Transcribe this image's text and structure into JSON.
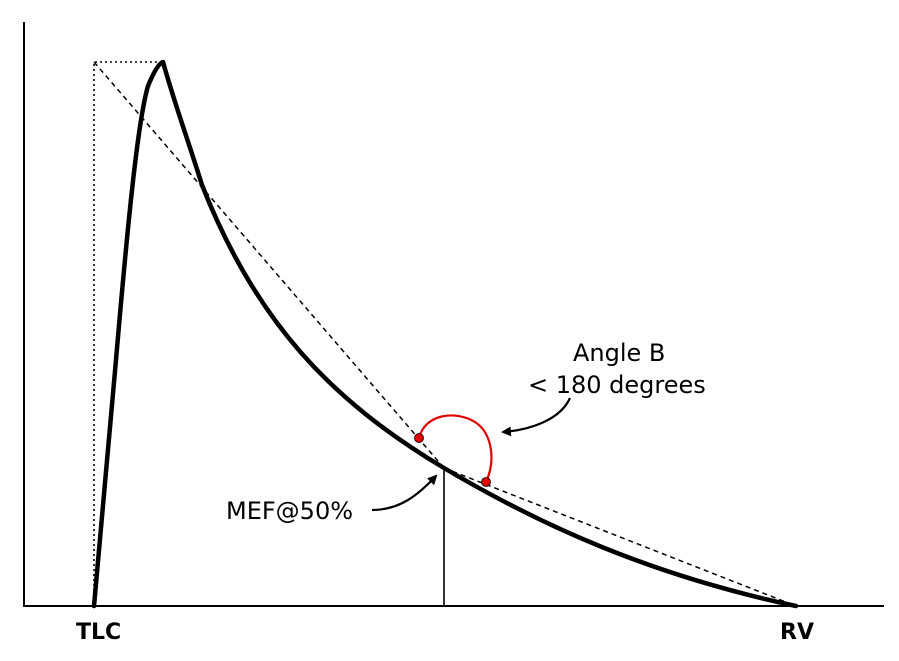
{
  "diagram": {
    "x_labels": {
      "left": "TLC",
      "right": "RV"
    },
    "annotations": {
      "mef": "MEF@50%",
      "angle_line1": "Angle B",
      "angle_line2": "< 180 degrees"
    },
    "colors": {
      "curve": "#000000",
      "angle_arc": "#e00000",
      "background": "#ffffff"
    }
  }
}
